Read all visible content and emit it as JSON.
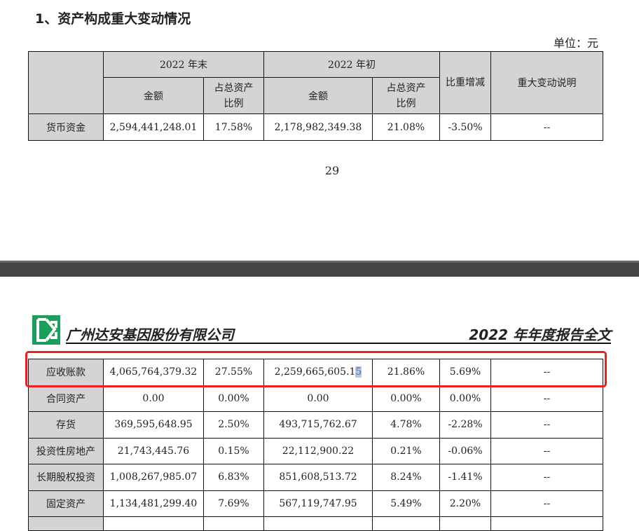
{
  "section_title": "1、资产构成重大变动情况",
  "unit": "单位：元",
  "headers": {
    "end": "2022 年末",
    "begin": "2022 年初",
    "amount": "金额",
    "ratio": "占总资产比例",
    "change": "比重增减",
    "note": "重大变动说明"
  },
  "top_rows": [
    {
      "item": "货币资金",
      "end_amt": "2,594,441,248.01",
      "end_pct": "17.58%",
      "begin_amt": "2,178,982,349.38",
      "begin_pct": "21.08%",
      "change": "-3.50%",
      "note": "--"
    }
  ],
  "page_number": "29",
  "company": "广州达安基因股份有限公司",
  "report_title": "2022 年年度报告全文",
  "brand_color": "#1aa05a",
  "highlight_color": "#e82020",
  "rows": [
    {
      "item": "应收账款",
      "end_amt": "4,065,764,379.32",
      "end_pct": "27.55%",
      "begin_amt": "2,259,665,605.15",
      "begin_pct": "21.86%",
      "change": "5.69%",
      "note": "--"
    },
    {
      "item": "合同资产",
      "end_amt": "0.00",
      "end_pct": "0.00%",
      "begin_amt": "0.00",
      "begin_pct": "0.00%",
      "change": "0.00%",
      "note": "--"
    },
    {
      "item": "存货",
      "end_amt": "369,595,648.95",
      "end_pct": "2.50%",
      "begin_amt": "493,715,762.67",
      "begin_pct": "4.78%",
      "change": "-2.28%",
      "note": "--"
    },
    {
      "item": "投资性房地产",
      "end_amt": "21,743,445.76",
      "end_pct": "0.15%",
      "begin_amt": "22,112,900.22",
      "begin_pct": "0.21%",
      "change": "-0.06%",
      "note": "--"
    },
    {
      "item": "长期股权投资",
      "end_amt": "1,008,267,985.07",
      "end_pct": "6.83%",
      "begin_amt": "851,608,513.72",
      "begin_pct": "8.24%",
      "change": "-1.41%",
      "note": "--"
    },
    {
      "item": "固定资产",
      "end_amt": "1,134,481,299.40",
      "end_pct": "7.69%",
      "begin_amt": "567,119,747.95",
      "begin_pct": "5.49%",
      "change": "2.20%",
      "note": "--"
    }
  ]
}
